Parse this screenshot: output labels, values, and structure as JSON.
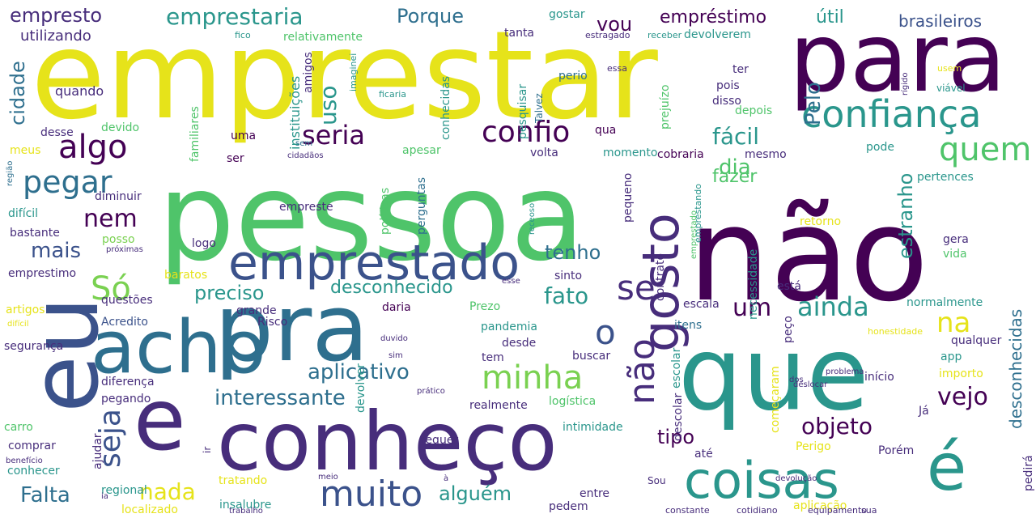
{
  "palette": {
    "yellow": "#e6e31a",
    "lightgreen": "#7ad151",
    "green": "#4fc46a",
    "teal": "#2a968c",
    "darkteal": "#2e6f8e",
    "blue": "#3b528b",
    "purple": "#472d7b",
    "darkpurple": "#440154"
  },
  "words": [
    {
      "text": "emprestar",
      "color": "yellow"
    },
    {
      "text": "pessoa",
      "color": "green"
    },
    {
      "text": "não",
      "color": "darkpurple"
    },
    {
      "text": "para",
      "color": "darkpurple"
    },
    {
      "text": "que",
      "color": "teal"
    },
    {
      "text": "eu",
      "color": "blue"
    },
    {
      "text": "pra",
      "color": "darkteal"
    },
    {
      "text": "acho",
      "color": "darkteal"
    },
    {
      "text": "e",
      "color": "purple"
    },
    {
      "text": "conheço",
      "color": "purple"
    },
    {
      "text": "coisas",
      "color": "teal"
    },
    {
      "text": "é",
      "color": "teal"
    },
    {
      "text": "emprestado",
      "color": "blue"
    },
    {
      "text": "confiança",
      "color": "teal"
    },
    {
      "text": "gosto",
      "color": "purple"
    },
    {
      "text": "não",
      "color": "purple"
    },
    {
      "text": "muito",
      "color": "blue"
    },
    {
      "text": "minha",
      "color": "lightgreen"
    },
    {
      "text": "confio",
      "color": "darkpurple"
    },
    {
      "text": "algo",
      "color": "darkpurple"
    },
    {
      "text": "pegar",
      "color": "darkteal"
    },
    {
      "text": "seria",
      "color": "darkpurple"
    },
    {
      "text": "quem",
      "color": "green"
    },
    {
      "text": "Só",
      "color": "lightgreen"
    },
    {
      "text": "o",
      "color": "blue"
    },
    {
      "text": "se",
      "color": "purple"
    },
    {
      "text": "nem",
      "color": "darkpurple"
    },
    {
      "text": "um",
      "color": "darkpurple"
    },
    {
      "text": "ainda",
      "color": "teal"
    },
    {
      "text": "na",
      "color": "yellow"
    },
    {
      "text": "vejo",
      "color": "darkpurple"
    },
    {
      "text": "objeto",
      "color": "darkpurple"
    },
    {
      "text": "nada",
      "color": "yellow"
    },
    {
      "text": "seja",
      "color": "blue"
    },
    {
      "text": "Falta",
      "color": "darkteal"
    },
    {
      "text": "aplicativo",
      "color": "darkteal"
    },
    {
      "text": "interessante",
      "color": "darkteal"
    },
    {
      "text": "tipo",
      "color": "darkpurple"
    },
    {
      "text": "alguém",
      "color": "teal"
    },
    {
      "text": "fácil",
      "color": "teal"
    },
    {
      "text": "dia",
      "color": "green"
    },
    {
      "text": "mais",
      "color": "blue"
    },
    {
      "text": "cidade",
      "color": "darkteal"
    },
    {
      "text": "fazer",
      "color": "green"
    },
    {
      "text": "preciso",
      "color": "teal"
    },
    {
      "text": "desconhecido",
      "color": "teal"
    },
    {
      "text": "fato",
      "color": "teal"
    },
    {
      "text": "tenho",
      "color": "darkteal"
    },
    {
      "text": "estranho",
      "color": "teal"
    },
    {
      "text": "desconhecidas",
      "color": "darkteal"
    },
    {
      "text": "Pelo",
      "color": "darkteal"
    },
    {
      "text": "uso",
      "color": "teal"
    },
    {
      "text": "empresto",
      "color": "purple"
    },
    {
      "text": "emprestaria",
      "color": "teal"
    },
    {
      "text": "Porque",
      "color": "darkteal"
    },
    {
      "text": "vou",
      "color": "darkpurple"
    },
    {
      "text": "empréstimo",
      "color": "darkpurple"
    },
    {
      "text": "útil",
      "color": "teal"
    },
    {
      "text": "brasileiros",
      "color": "blue"
    },
    {
      "text": "utilizando",
      "color": "purple"
    },
    {
      "text": "relativamente",
      "color": "green"
    },
    {
      "text": "tanta",
      "color": "purple"
    },
    {
      "text": "devolverem",
      "color": "teal"
    },
    {
      "text": "gostar",
      "color": "teal"
    },
    {
      "text": "estragado",
      "color": "purple"
    },
    {
      "text": "receber",
      "color": "teal"
    },
    {
      "text": "fico",
      "color": "teal"
    },
    {
      "text": "quando",
      "color": "purple"
    },
    {
      "text": "instituições",
      "color": "teal"
    },
    {
      "text": "amigos",
      "color": "purple"
    },
    {
      "text": "imaginei",
      "color": "teal"
    },
    {
      "text": "conhecidas",
      "color": "teal"
    },
    {
      "text": "ficaria",
      "color": "teal"
    },
    {
      "text": "pesquisar",
      "color": "teal"
    },
    {
      "text": "Talvez",
      "color": "darkteal"
    },
    {
      "text": "prejuízo",
      "color": "green"
    },
    {
      "text": "perio",
      "color": "darkteal"
    },
    {
      "text": "essa",
      "color": "purple"
    },
    {
      "text": "ter",
      "color": "purple"
    },
    {
      "text": "pois",
      "color": "purple"
    },
    {
      "text": "disso",
      "color": "purple"
    },
    {
      "text": "depois",
      "color": "green"
    },
    {
      "text": "rígido",
      "color": "purple"
    },
    {
      "text": "usem",
      "color": "yellow"
    },
    {
      "text": "viável",
      "color": "teal"
    },
    {
      "text": "familiares",
      "color": "green"
    },
    {
      "text": "desse",
      "color": "purple"
    },
    {
      "text": "meus",
      "color": "yellow"
    },
    {
      "text": "devido",
      "color": "green"
    },
    {
      "text": "uma",
      "color": "darkpurple"
    },
    {
      "text": "qua",
      "color": "darkpurple"
    },
    {
      "text": "apesar",
      "color": "green"
    },
    {
      "text": "volta",
      "color": "purple"
    },
    {
      "text": "momento",
      "color": "teal"
    },
    {
      "text": "cobraria",
      "color": "darkpurple"
    },
    {
      "text": "mesmo",
      "color": "purple"
    },
    {
      "text": "pode",
      "color": "teal"
    },
    {
      "text": "sem",
      "color": "darkteal"
    },
    {
      "text": "cidadãos",
      "color": "purple"
    },
    {
      "text": "ser",
      "color": "darkpurple"
    },
    {
      "text": "políticas",
      "color": "green"
    },
    {
      "text": "perguntas",
      "color": "darkteal"
    },
    {
      "text": "pertences",
      "color": "teal"
    },
    {
      "text": "região",
      "color": "darkteal"
    },
    {
      "text": "diminuir",
      "color": "purple"
    },
    {
      "text": "receoso",
      "color": "teal"
    },
    {
      "text": "pequeno",
      "color": "purple"
    },
    {
      "text": "emprestando",
      "color": "teal"
    },
    {
      "text": "difícil",
      "color": "teal"
    },
    {
      "text": "empreste",
      "color": "purple"
    },
    {
      "text": "retorno",
      "color": "yellow"
    },
    {
      "text": "posso",
      "color": "lightgreen"
    },
    {
      "text": "bastante",
      "color": "purple"
    },
    {
      "text": "logo",
      "color": "purple"
    },
    {
      "text": "próximas",
      "color": "purple"
    },
    {
      "text": "contrato",
      "color": "purple"
    },
    {
      "text": "gera",
      "color": "purple"
    },
    {
      "text": "vida",
      "color": "green"
    },
    {
      "text": "emprestimo",
      "color": "purple"
    },
    {
      "text": "sinto",
      "color": "purple"
    },
    {
      "text": "baratos",
      "color": "yellow"
    },
    {
      "text": "esse",
      "color": "purple"
    },
    {
      "text": "necessidade",
      "color": "teal"
    },
    {
      "text": "está",
      "color": "purple"
    },
    {
      "text": "emprestado",
      "color": "green"
    },
    {
      "text": "artigos",
      "color": "yellow"
    },
    {
      "text": "questões",
      "color": "purple"
    },
    {
      "text": "grande",
      "color": "purple"
    },
    {
      "text": "Prezo",
      "color": "green"
    },
    {
      "text": "escala",
      "color": "purple"
    },
    {
      "text": "normalmente",
      "color": "teal"
    },
    {
      "text": "difícil",
      "color": "yellow"
    },
    {
      "text": "Acredito",
      "color": "blue"
    },
    {
      "text": "Risco",
      "color": "purple"
    },
    {
      "text": "daria",
      "color": "darkpurple"
    },
    {
      "text": "pandemia",
      "color": "teal"
    },
    {
      "text": "itens",
      "color": "darkteal"
    },
    {
      "text": "peço",
      "color": "purple"
    },
    {
      "text": "honestidade",
      "color": "yellow"
    },
    {
      "text": "qualquer",
      "color": "purple"
    },
    {
      "text": "segurança",
      "color": "purple"
    },
    {
      "text": "devolver",
      "color": "teal"
    },
    {
      "text": "duvido",
      "color": "purple"
    },
    {
      "text": "desde",
      "color": "purple"
    },
    {
      "text": "escolar",
      "color": "teal"
    },
    {
      "text": "app",
      "color": "teal"
    },
    {
      "text": "diferença",
      "color": "purple"
    },
    {
      "text": "sim",
      "color": "purple"
    },
    {
      "text": "tem",
      "color": "purple"
    },
    {
      "text": "buscar",
      "color": "purple"
    },
    {
      "text": "começaram",
      "color": "yellow"
    },
    {
      "text": "importo",
      "color": "yellow"
    },
    {
      "text": "início",
      "color": "purple"
    },
    {
      "text": "pegando",
      "color": "purple"
    },
    {
      "text": "prático",
      "color": "purple"
    },
    {
      "text": "logística",
      "color": "green"
    },
    {
      "text": "dos",
      "color": "purple"
    },
    {
      "text": "realmente",
      "color": "purple"
    },
    {
      "text": "descolar",
      "color": "purple"
    },
    {
      "text": "problema",
      "color": "purple"
    },
    {
      "text": "Já",
      "color": "purple"
    },
    {
      "text": "deslocar",
      "color": "purple"
    },
    {
      "text": "carro",
      "color": "green"
    },
    {
      "text": "ajudar",
      "color": "purple"
    },
    {
      "text": "intimidade",
      "color": "teal"
    },
    {
      "text": "pedirá",
      "color": "purple"
    },
    {
      "text": "ir",
      "color": "purple"
    },
    {
      "text": "requer",
      "color": "purple"
    },
    {
      "text": "comprar",
      "color": "purple"
    },
    {
      "text": "Perigo",
      "color": "yellow"
    },
    {
      "text": "Porém",
      "color": "purple"
    },
    {
      "text": "benefício",
      "color": "purple"
    },
    {
      "text": "conhecer",
      "color": "teal"
    },
    {
      "text": "até",
      "color": "purple"
    },
    {
      "text": "regional",
      "color": "teal"
    },
    {
      "text": "tratando",
      "color": "yellow"
    },
    {
      "text": "meio",
      "color": "purple"
    },
    {
      "text": "à",
      "color": "purple"
    },
    {
      "text": "Sou",
      "color": "purple"
    },
    {
      "text": "devolução",
      "color": "purple"
    },
    {
      "text": "entre",
      "color": "purple"
    },
    {
      "text": "ia",
      "color": "purple"
    },
    {
      "text": "insalubre",
      "color": "teal"
    },
    {
      "text": "trabalho",
      "color": "purple"
    },
    {
      "text": "localizado",
      "color": "yellow"
    },
    {
      "text": "pedem",
      "color": "purple"
    },
    {
      "text": "aplicação",
      "color": "yellow"
    },
    {
      "text": "constante",
      "color": "purple"
    },
    {
      "text": "cotidiano",
      "color": "purple"
    },
    {
      "text": "equipamento",
      "color": "purple"
    },
    {
      "text": "sua",
      "color": "purple"
    }
  ]
}
